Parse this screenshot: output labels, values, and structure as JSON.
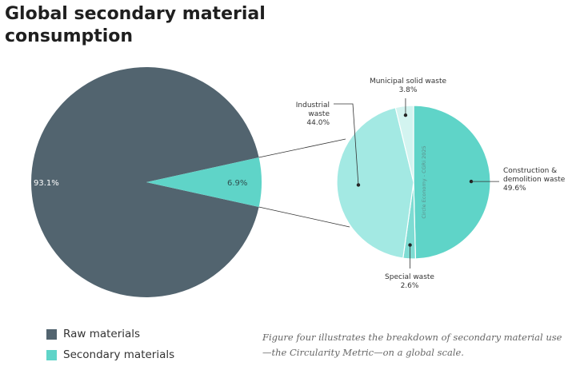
{
  "title": "Global secondary material consumption",
  "colors": {
    "raw": "#52646f",
    "secondary": "#5fd4c8",
    "construction": "#5fd4c8",
    "special": "#7edcd3",
    "industrial": "#a3e9e3",
    "municipal": "#d3f4f0"
  },
  "chart_data": [
    {
      "type": "pie",
      "slices": [
        {
          "name": "Raw materials",
          "value": 93.1,
          "label": "93.1%"
        },
        {
          "name": "Secondary materials",
          "value": 6.9,
          "label": "6.9%"
        }
      ]
    },
    {
      "type": "pie",
      "slices": [
        {
          "name": "Construction & demolition waste",
          "value": 49.6
        },
        {
          "name": "Special waste",
          "value": 2.6
        },
        {
          "name": "Industrial waste",
          "value": 44.0
        },
        {
          "name": "Municipal solid waste",
          "value": 3.8
        }
      ],
      "annotations": {
        "construction": [
          "Construction &",
          "demolition waste",
          "49.6%"
        ],
        "special": [
          "Special waste",
          "2.6%"
        ],
        "industrial": [
          "Industrial",
          "waste",
          "44.0%"
        ],
        "municipal": [
          "Municipal solid waste",
          "3.8%"
        ]
      },
      "watermark": "Circle Economy - CGRi 2025"
    }
  ],
  "legend": [
    {
      "label": "Raw materials",
      "color": "#52646f"
    },
    {
      "label": "Secondary materials",
      "color": "#5fd4c8"
    }
  ],
  "caption": "Figure four illustrates the breakdown of secondary material use—the Circularity Metric—on a global scale."
}
